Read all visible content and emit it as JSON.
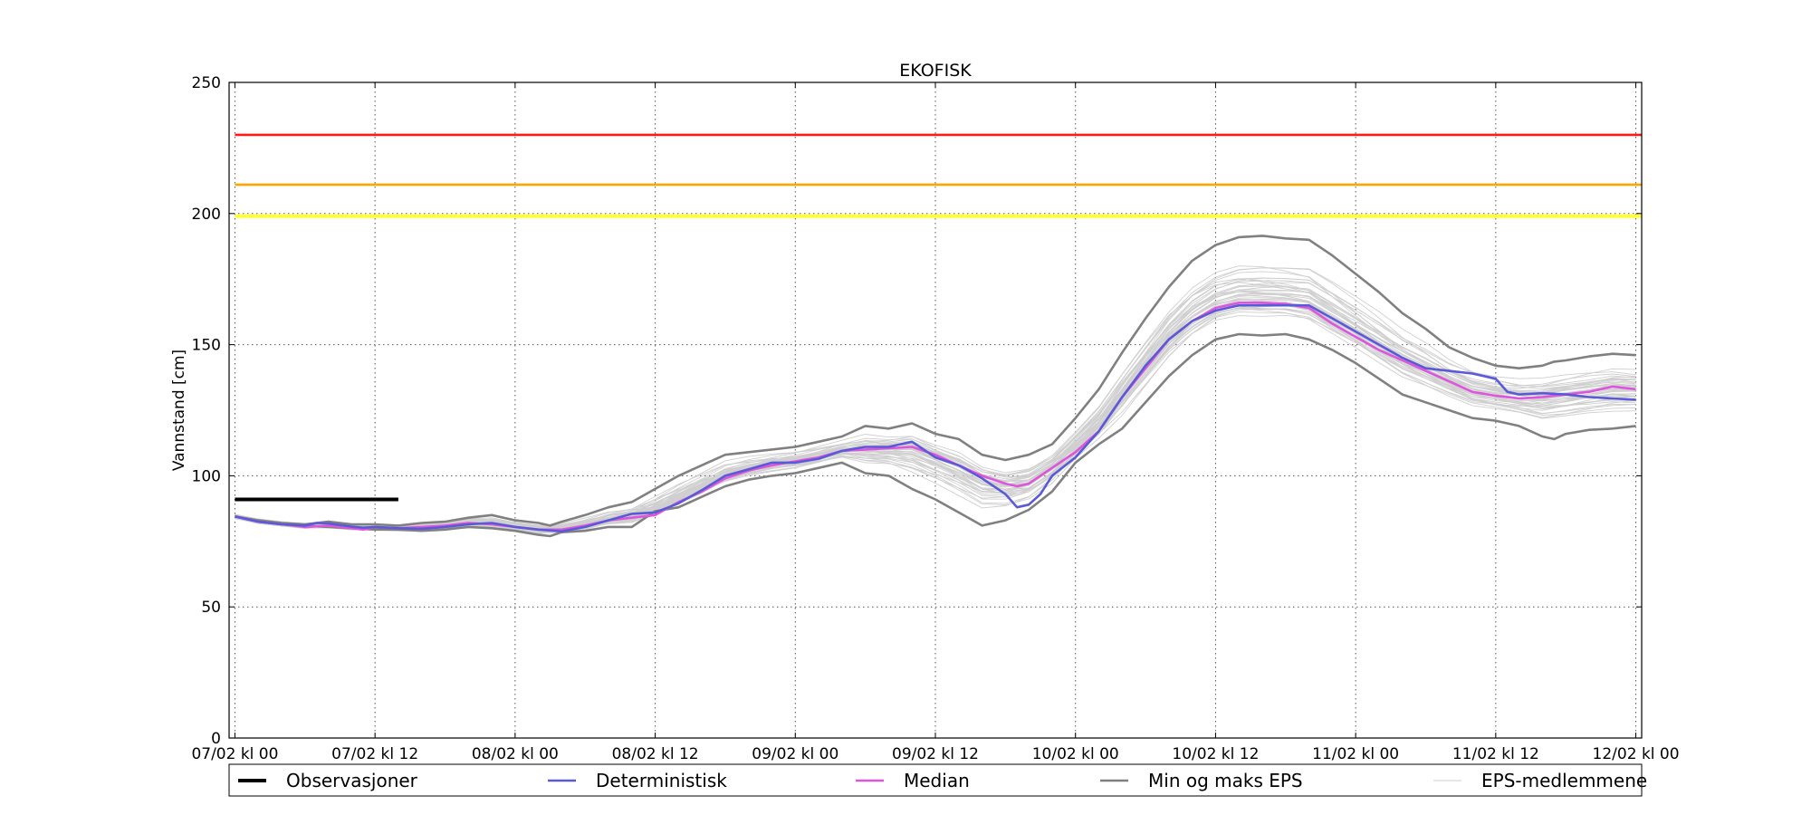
{
  "chart_data": {
    "type": "line",
    "title": "EKOFISK",
    "xlabel": "",
    "ylabel": "Vannstand [cm]",
    "ylim": [
      0,
      250
    ],
    "y_ticks": [
      0,
      50,
      100,
      150,
      200,
      250
    ],
    "x_unit": "hours since 07/02 kl 00",
    "xlim": [
      -0.5,
      120.5
    ],
    "x_ticks": [
      {
        "x": 0,
        "label": "07/02 kl 00"
      },
      {
        "x": 12,
        "label": "07/02 kl 12"
      },
      {
        "x": 24,
        "label": "08/02 kl 00"
      },
      {
        "x": 36,
        "label": "08/02 kl 12"
      },
      {
        "x": 48,
        "label": "09/02 kl 00"
      },
      {
        "x": 60,
        "label": "09/02 kl 12"
      },
      {
        "x": 72,
        "label": "10/02 kl 00"
      },
      {
        "x": 84,
        "label": "10/02 kl 12"
      },
      {
        "x": 96,
        "label": "11/02 kl 00"
      },
      {
        "x": 108,
        "label": "11/02 kl 12"
      },
      {
        "x": 120,
        "label": "12/02 kl 00"
      }
    ],
    "grid": true,
    "legend_position": "bottom",
    "thresholds": [
      {
        "value": 230,
        "color": "#ff1a1a"
      },
      {
        "value": 211,
        "color": "#ffa500"
      },
      {
        "value": 199,
        "color": "#ffff33"
      }
    ],
    "series": [
      {
        "name": "Observasjoner",
        "color": "#000000",
        "x": [
          0,
          14
        ],
        "y": [
          91,
          91
        ]
      },
      {
        "name": "Deterministisk",
        "color": "#5a5ad8",
        "x": [
          0,
          2,
          4,
          6,
          7,
          8,
          10,
          11,
          12,
          14,
          16,
          18,
          20,
          22,
          24,
          26,
          28,
          30,
          32,
          34,
          36,
          38,
          40,
          42,
          44,
          46,
          48,
          50,
          52,
          54,
          56,
          58,
          60,
          62,
          64,
          66,
          67,
          68,
          69,
          70,
          72,
          74,
          76,
          78,
          80,
          82,
          84,
          86,
          88,
          90,
          92,
          94,
          96,
          98,
          100,
          102,
          104,
          106,
          108,
          109,
          110,
          112,
          114,
          116,
          118,
          120
        ],
        "y": [
          84.5,
          82.5,
          81.5,
          81,
          82,
          81.8,
          80.6,
          80.2,
          80.5,
          80,
          79.8,
          80.5,
          81.5,
          82,
          80.5,
          79.5,
          78.8,
          80.5,
          83,
          85.5,
          86,
          89.5,
          94.5,
          100,
          102.5,
          105,
          105,
          106.5,
          109.5,
          111,
          111,
          113,
          107,
          104,
          99,
          93,
          88,
          89,
          93,
          100,
          107,
          117,
          130,
          142,
          152,
          159,
          163,
          165,
          165,
          165,
          165,
          160,
          155,
          150,
          145,
          141,
          140,
          139,
          137,
          132,
          131,
          131.5,
          131,
          130,
          129.5,
          129
        ]
      },
      {
        "name": "Median",
        "color": "#dd55dd",
        "x": [
          0,
          2,
          4,
          6,
          8,
          10,
          11,
          12,
          14,
          16,
          18,
          20,
          22,
          24,
          26,
          28,
          30,
          32,
          34,
          36,
          38,
          40,
          42,
          44,
          46,
          48,
          50,
          52,
          54,
          56,
          58,
          60,
          62,
          64,
          66,
          67,
          68,
          70,
          72,
          74,
          76,
          78,
          80,
          82,
          84,
          86,
          88,
          90,
          92,
          94,
          96,
          98,
          100,
          102,
          104,
          106,
          108,
          110,
          112,
          114,
          116,
          118,
          120
        ],
        "y": [
          84.5,
          82.5,
          81.5,
          80.5,
          81,
          80,
          79.5,
          80.5,
          80,
          80.5,
          81,
          82,
          81.5,
          80.5,
          79.5,
          79.5,
          81,
          83,
          84,
          85,
          90,
          94,
          99,
          102,
          104,
          105.5,
          107,
          109.5,
          110,
          110.5,
          111,
          108,
          104,
          100,
          97,
          96,
          97,
          103,
          109,
          117,
          130,
          141,
          152,
          159,
          164,
          166,
          166,
          165.5,
          164,
          158,
          153,
          148,
          144,
          140,
          136,
          132,
          130.5,
          129.5,
          130,
          131,
          132,
          134,
          133
        ]
      },
      {
        "name": "Min og maks EPS",
        "color": "#808080",
        "x": [
          0,
          2,
          4,
          6,
          8,
          10,
          12,
          14,
          16,
          18,
          20,
          22,
          24,
          26,
          27,
          28,
          30,
          32,
          34,
          36,
          38,
          40,
          42,
          44,
          46,
          48,
          50,
          52,
          54,
          56,
          58,
          60,
          62,
          64,
          66,
          68,
          70,
          72,
          74,
          76,
          78,
          80,
          82,
          84,
          86,
          88,
          90,
          92,
          94,
          96,
          98,
          100,
          102,
          104,
          106,
          108,
          110,
          112,
          113,
          114,
          116,
          118,
          120
        ],
        "y": [
          84.5,
          83,
          82,
          81.5,
          82.5,
          81.5,
          81.5,
          81,
          82,
          82.5,
          84,
          85,
          83,
          82,
          81,
          82.5,
          85,
          88,
          90,
          95,
          100,
          104,
          108,
          109,
          110,
          111,
          113,
          115,
          119,
          118,
          120,
          116,
          114,
          108,
          106,
          108,
          112,
          122,
          133,
          147,
          160,
          172,
          182,
          188,
          191,
          191.5,
          190.5,
          190,
          184,
          177,
          170,
          162,
          156,
          149,
          145,
          142,
          141,
          142,
          143.5,
          144,
          145.5,
          146.5,
          146
        ],
        "y2": [
          84.5,
          82.5,
          81.5,
          81,
          80.5,
          80,
          79.5,
          79.5,
          79,
          79.5,
          80.5,
          80,
          79,
          77.5,
          77,
          78.5,
          79,
          80.5,
          80.5,
          86.5,
          88,
          92,
          96,
          98.5,
          100,
          101,
          103,
          105,
          101,
          100,
          95,
          91,
          86,
          81,
          83,
          87,
          94,
          105,
          112,
          118,
          128,
          138,
          146,
          152,
          154,
          153.5,
          154,
          152,
          148,
          143,
          137,
          131,
          128,
          125,
          122,
          121,
          119,
          115,
          114,
          116,
          117.5,
          118,
          119
        ]
      },
      {
        "name": "EPS-medlemmene",
        "color": "#cccccc",
        "x": [],
        "y": []
      }
    ]
  }
}
